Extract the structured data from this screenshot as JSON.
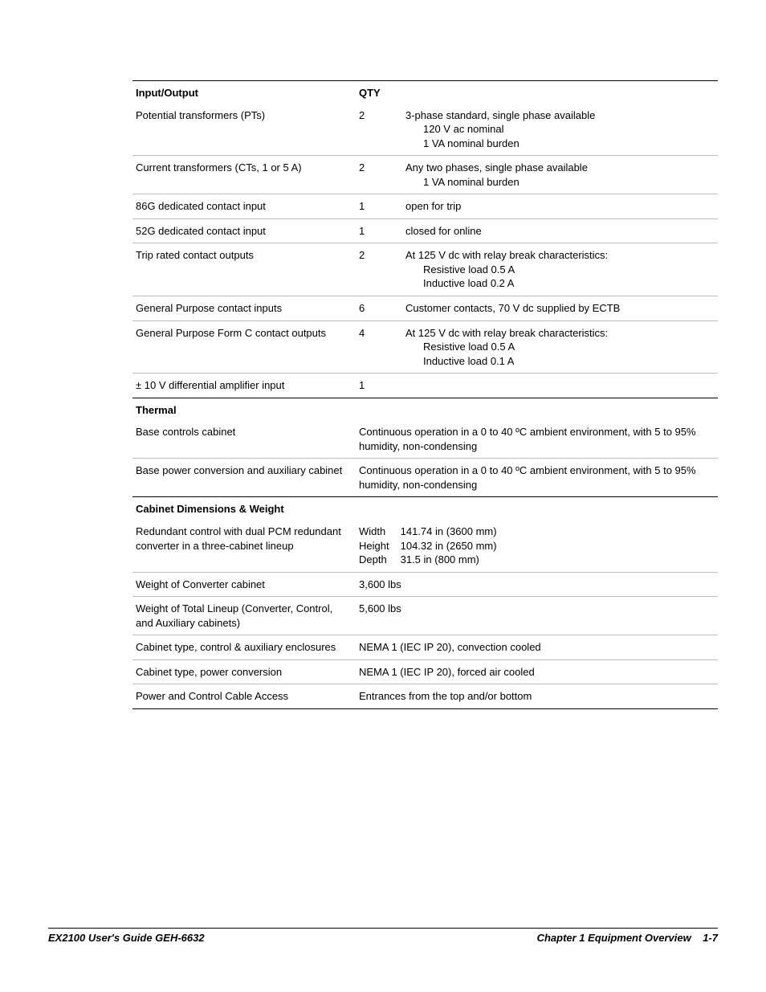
{
  "headers": {
    "io": "Input/Output",
    "qty": "QTY",
    "thermal": "Thermal",
    "cabinet": "Cabinet Dimensions & Weight"
  },
  "io": [
    {
      "name": "Potential transformers (PTs)",
      "qty": "2",
      "desc": "3-phase standard, single phase available",
      "sub": [
        "120 V ac nominal",
        "1 VA nominal burden"
      ]
    },
    {
      "name": "Current transformers (CTs, 1 or 5 A)",
      "qty": "2",
      "desc": "Any two phases, single phase available",
      "sub": [
        "1 VA nominal burden"
      ]
    },
    {
      "name": "86G dedicated contact input",
      "qty": "1",
      "desc": "open for trip",
      "sub": []
    },
    {
      "name": "52G dedicated contact input",
      "qty": "1",
      "desc": "closed for online",
      "sub": []
    },
    {
      "name": "Trip rated contact outputs",
      "qty": "2",
      "desc": "At 125 V dc with relay break characteristics:",
      "sub": [
        "Resistive load 0.5 A",
        "Inductive load 0.2 A"
      ]
    },
    {
      "name": "General Purpose contact inputs",
      "qty": "6",
      "desc": "Customer contacts, 70 V dc supplied by ECTB",
      "sub": []
    },
    {
      "name": "General Purpose Form C contact outputs",
      "qty": "4",
      "desc": "At 125 V dc with relay break characteristics:",
      "sub": [
        "Resistive load 0.5 A",
        "Inductive load 0.1 A"
      ]
    },
    {
      "name": "± 10 V differential amplifier input",
      "qty": "1",
      "desc": "",
      "sub": []
    }
  ],
  "thermal": [
    {
      "name": "Base controls cabinet",
      "desc": "Continuous operation in a 0 to 40 ºC ambient environment, with 5 to 95% humidity, non-condensing"
    },
    {
      "name": "Base power conversion and auxiliary cabinet",
      "desc": "Continuous operation in a 0 to 40 ºC ambient environment, with 5 to 95% humidity, non-condensing"
    }
  ],
  "cabinet": {
    "redundant_name": "Redundant control with dual PCM redundant converter in a three-cabinet lineup",
    "dims": [
      {
        "label": "Width",
        "value": "141.74 in (3600 mm)"
      },
      {
        "label": "Height",
        "value": "104.32 in (2650 mm)"
      },
      {
        "label": "Depth",
        "value": "31.5 in (800 mm)"
      }
    ],
    "rows": [
      {
        "name": "Weight of Converter cabinet",
        "value": "3,600 lbs"
      },
      {
        "name": "Weight of Total Lineup (Converter, Control,  and Auxiliary cabinets)",
        "value": "5,600 lbs"
      },
      {
        "name": "Cabinet type, control & auxiliary enclosures",
        "value": "NEMA 1 (IEC IP 20), convection cooled"
      },
      {
        "name": "Cabinet type, power conversion",
        "value": "NEMA 1 (IEC IP 20), forced air cooled"
      },
      {
        "name": "Power and Control Cable Access",
        "value": "Entrances from the top and/or bottom"
      }
    ]
  },
  "footer": {
    "left": "EX2100 User's Guide  GEH-6632",
    "right_chapter": "Chapter 1 Equipment Overview",
    "right_page": "1-7"
  }
}
